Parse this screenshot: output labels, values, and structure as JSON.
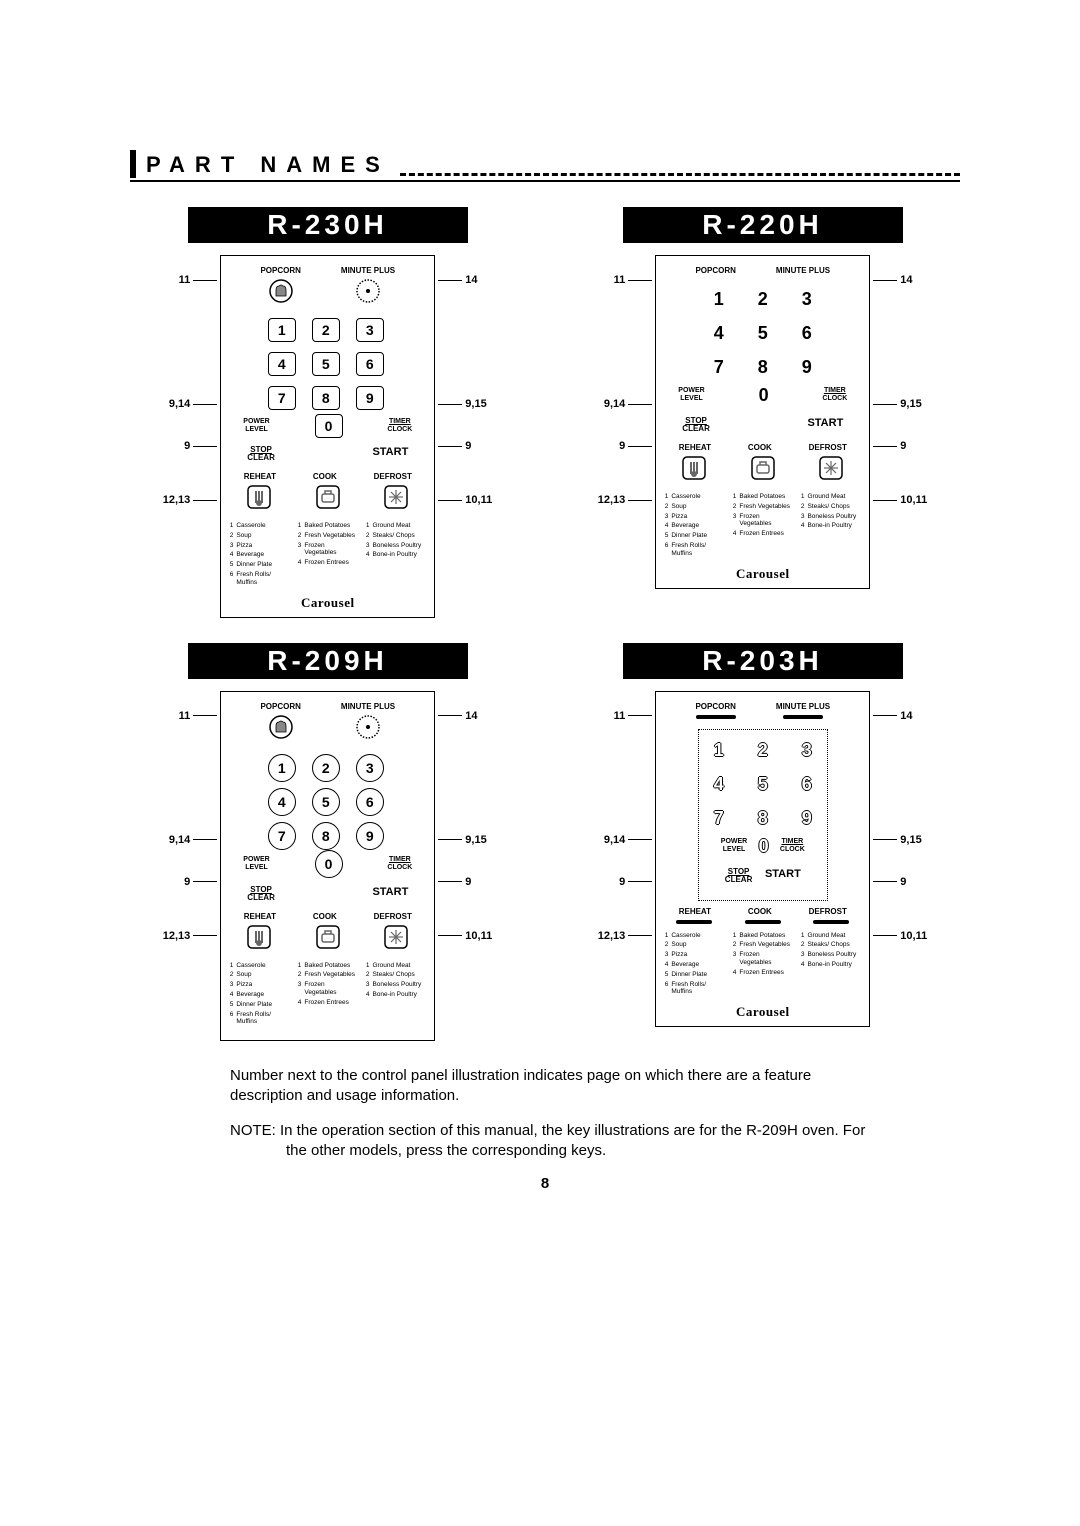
{
  "header_title": "PART NAMES",
  "page_num": "8",
  "bottom": {
    "para1": "Number next to the control panel illustration indicates page on which there are a feature description and usage information.",
    "note": "NOTE: In the operation section of this manual, the key illustrations are for the R-209H oven. For the other models, press the corresponding keys."
  },
  "labels": {
    "popcorn": "POPCORN",
    "minute_plus": "MINUTE PLUS",
    "power": "POWER",
    "level": "LEVEL",
    "timer": "TIMER",
    "clock": "CLOCK",
    "stop": "STOP",
    "clear": "CLEAR",
    "start": "START",
    "reheat": "REHEAT",
    "cook": "COOK",
    "defrost": "DEFROST",
    "carousel": "Carousel"
  },
  "callouts": {
    "left": [
      {
        "t": "11",
        "sp": 18
      },
      {
        "t": "9,14",
        "sp": 110
      },
      {
        "t": "9",
        "sp": 28
      },
      {
        "t": "12,13",
        "sp": 40
      }
    ],
    "right": [
      {
        "t": "14",
        "sp": 18
      },
      {
        "t": "9,15",
        "sp": 110
      },
      {
        "t": "9",
        "sp": 28
      },
      {
        "t": "10,11",
        "sp": 40
      }
    ]
  },
  "digits": [
    "1",
    "2",
    "3",
    "4",
    "5",
    "6",
    "7",
    "8",
    "9"
  ],
  "zero": "0",
  "menu": {
    "col1": [
      {
        "n": "1",
        "t": "Casserole"
      },
      {
        "n": "2",
        "t": "Soup"
      },
      {
        "n": "3",
        "t": "Pizza"
      },
      {
        "n": "4",
        "t": "Beverage"
      },
      {
        "n": "5",
        "t": "Dinner Plate"
      },
      {
        "n": "6",
        "t": "Fresh Rolls/ Muffins"
      }
    ],
    "col2": [
      {
        "n": "1",
        "t": "Baked Potatoes"
      },
      {
        "n": "2",
        "t": "Fresh Vegetables"
      },
      {
        "n": "3",
        "t": "Frozen Vegetables"
      },
      {
        "n": "4",
        "t": "Frozen Entrees"
      }
    ],
    "col3": [
      {
        "n": "1",
        "t": "Ground Meat"
      },
      {
        "n": "2",
        "t": "Steaks/ Chops"
      },
      {
        "n": "3",
        "t": "Boneless Poultry"
      },
      {
        "n": "4",
        "t": "Bone-in Poultry"
      }
    ]
  },
  "models": [
    {
      "name": "R-230H",
      "style": "icons",
      "digit_style": "outline",
      "shape": "rect",
      "dotted": false
    },
    {
      "name": "R-220H",
      "style": "text",
      "digit_style": "plain",
      "shape": "rect",
      "dotted": false
    },
    {
      "name": "R-209H",
      "style": "icons",
      "digit_style": "plain",
      "shape": "circle",
      "dotted": false
    },
    {
      "name": "R-203H",
      "style": "flat",
      "digit_style": "outline",
      "shape": "rect",
      "dotted": true
    }
  ]
}
